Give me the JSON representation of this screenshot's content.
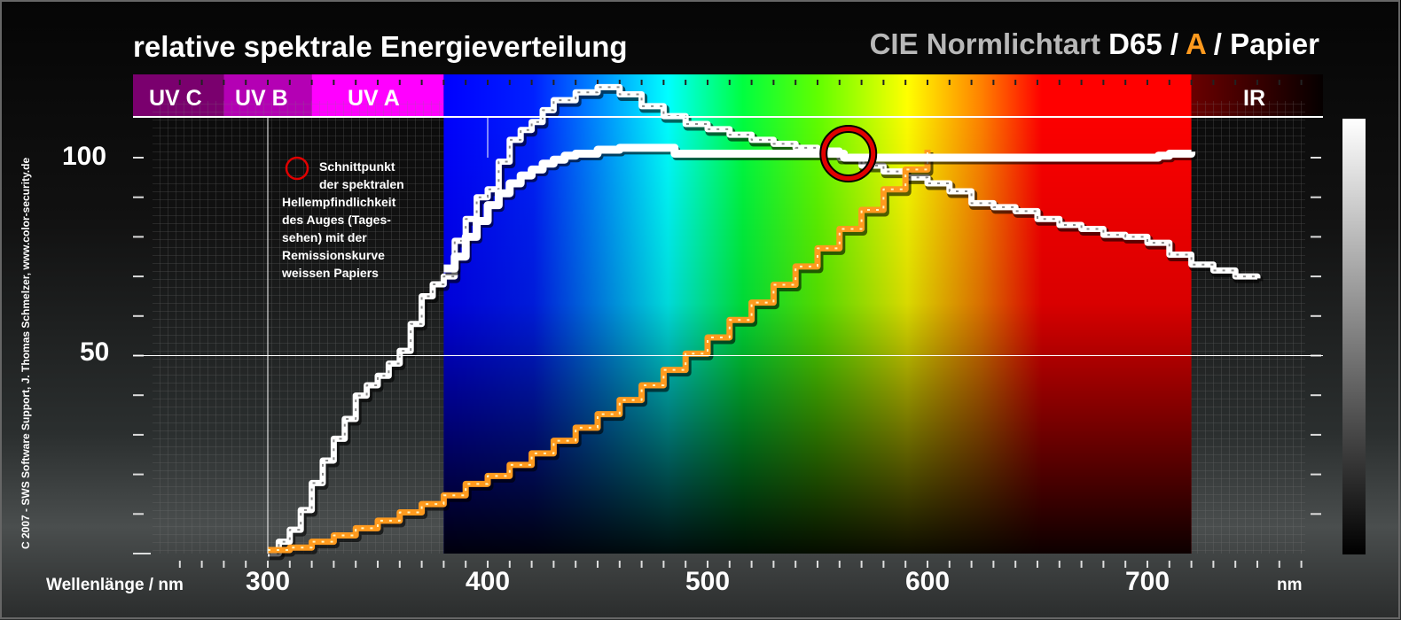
{
  "title": "relative spektrale Energieverteilung",
  "header": {
    "prefix": "CIE Normlichtart",
    "d65": "D65",
    "sep1": "/",
    "a": "A",
    "sep2": "/",
    "papier": "Papier"
  },
  "credit": "C 2007 - SWS Software Support, J. Thomas Schmelzer, www.color-security.de",
  "bands": {
    "uvc": "UV C",
    "uvb": "UV B",
    "uva": "UV A",
    "ir": "IR"
  },
  "annotation": {
    "lines": [
      "Schnittpunkt",
      "der spektralen",
      "Hellempfindlichkeit",
      "des Auges (Tages-",
      "sehen) mit der",
      "Remissionskurve",
      "weissen Papiers"
    ]
  },
  "colors": {
    "a_orange": "#ff9a1e",
    "circle_red": "#e00000",
    "uvc_purple": "#7a006e",
    "uvb_purple": "#b400b4",
    "uva_magenta": "#ff00ff",
    "ir_dark": "#3a0000"
  },
  "chart_data": {
    "type": "line",
    "xlabel": "Wellenlänge / nm",
    "xunit": "nm",
    "xlim": [
      250,
      780
    ],
    "ylim": [
      0,
      115
    ],
    "x_tick_labels": [
      300,
      400,
      500,
      600,
      700
    ],
    "y_tick_labels": [
      50,
      100
    ],
    "series": [
      {
        "name": "D65",
        "x": [
          300,
          305,
          310,
          315,
          320,
          325,
          330,
          335,
          340,
          345,
          350,
          355,
          360,
          365,
          370,
          375,
          380,
          385,
          390,
          395,
          400,
          405,
          410,
          415,
          420,
          425,
          430,
          440,
          450,
          460,
          470,
          480,
          490,
          500,
          510,
          520,
          530,
          540,
          550,
          560,
          570,
          580,
          590,
          600,
          610,
          620,
          630,
          640,
          650,
          660,
          670,
          680,
          690,
          700,
          710,
          720,
          730,
          740,
          750
        ],
        "values": [
          0.03,
          3.0,
          6.0,
          11.0,
          17.8,
          23.5,
          29.0,
          34.0,
          39.9,
          42.5,
          44.9,
          48.0,
          51.2,
          58.0,
          65.0,
          68.0,
          70.0,
          79.0,
          84.5,
          90.0,
          92.0,
          99.0,
          104.5,
          107.0,
          109.0,
          112.0,
          114.5,
          116.5,
          117.8,
          116.0,
          113.0,
          110.5,
          108.5,
          107.2,
          105.8,
          104.5,
          103.5,
          102.5,
          101.8,
          100.0,
          98.0,
          96.5,
          95.0,
          93.5,
          91.5,
          88.5,
          87.5,
          86.5,
          84.5,
          83.0,
          82.0,
          80.5,
          80.0,
          78.5,
          75.5,
          73.0,
          71.5,
          70.0,
          69.5
        ]
      },
      {
        "name": "A",
        "x": [
          300,
          310,
          320,
          330,
          340,
          350,
          360,
          370,
          380,
          390,
          400,
          410,
          420,
          430,
          440,
          450,
          460,
          470,
          480,
          490,
          500,
          510,
          520,
          530,
          540,
          550,
          560,
          570,
          580,
          590,
          600
        ],
        "values": [
          0.9,
          1.5,
          3.0,
          4.6,
          6.4,
          8.3,
          10.4,
          12.5,
          14.7,
          17.6,
          19.6,
          22.4,
          25.3,
          28.5,
          31.8,
          35.2,
          38.8,
          42.5,
          46.4,
          50.5,
          54.6,
          59.0,
          63.4,
          67.9,
          72.5,
          77.1,
          82.0,
          86.8,
          92.0,
          97.0,
          102.0
        ]
      },
      {
        "name": "Papier",
        "x": [
          380,
          385,
          390,
          395,
          400,
          405,
          410,
          415,
          420,
          425,
          430,
          435,
          440,
          450,
          460,
          470,
          480,
          485,
          490,
          500,
          520,
          540,
          560,
          562,
          565,
          570,
          600,
          650,
          700,
          705,
          710,
          720
        ],
        "values": [
          72.0,
          75.0,
          80.0,
          84.0,
          88.0,
          91.0,
          93.5,
          95.5,
          97.0,
          98.5,
          99.5,
          100.5,
          101.0,
          102.0,
          102.5,
          102.5,
          102.5,
          101.0,
          101.0,
          101.0,
          101.0,
          101.0,
          101.0,
          100.0,
          100.0,
          100.0,
          100.0,
          100.0,
          100.0,
          100.5,
          101.0,
          101.5
        ]
      }
    ],
    "annotation_circle": {
      "x": 564,
      "y": 101
    }
  }
}
